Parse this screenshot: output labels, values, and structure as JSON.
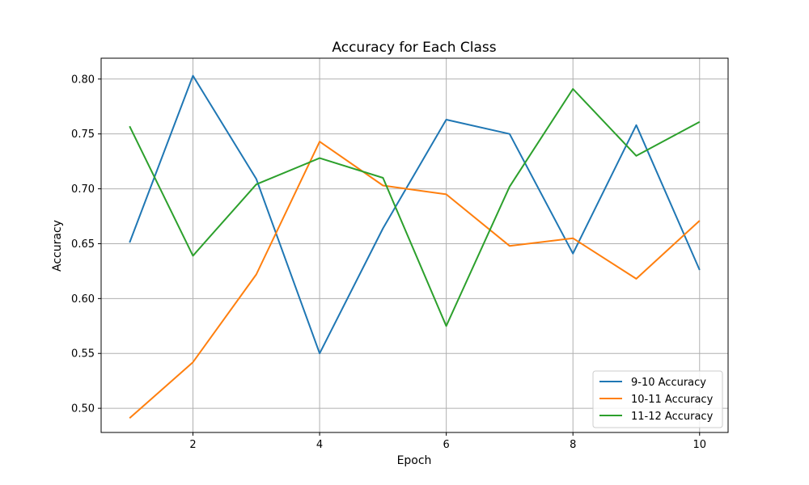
{
  "chart_data": {
    "type": "line",
    "title": "Accuracy for Each Class",
    "xlabel": "Epoch",
    "ylabel": "Accuracy",
    "x": [
      1,
      2,
      3,
      4,
      5,
      6,
      7,
      8,
      9,
      10
    ],
    "xlim": [
      0.55,
      10.45
    ],
    "ylim": [
      0.478,
      0.819
    ],
    "xticks": [
      2,
      4,
      6,
      8,
      10
    ],
    "yticks": [
      0.5,
      0.55,
      0.6,
      0.65,
      0.7,
      0.75,
      0.8
    ],
    "xtick_labels": [
      "2",
      "4",
      "6",
      "8",
      "10"
    ],
    "ytick_labels": [
      "0.50",
      "0.55",
      "0.60",
      "0.65",
      "0.70",
      "0.75",
      "0.80"
    ],
    "grid": true,
    "legend_position": "lower-right",
    "series": [
      {
        "name": "9-10 Accuracy",
        "color": "#1f77b4",
        "values": [
          0.651,
          0.803,
          0.709,
          0.55,
          0.664,
          0.763,
          0.75,
          0.641,
          0.758,
          0.626
        ]
      },
      {
        "name": "10-11 Accuracy",
        "color": "#ff7f0e",
        "values": [
          0.491,
          0.542,
          0.622,
          0.743,
          0.703,
          0.695,
          0.648,
          0.655,
          0.618,
          0.671
        ]
      },
      {
        "name": "11-12 Accuracy",
        "color": "#2ca02c",
        "values": [
          0.757,
          0.639,
          0.704,
          0.728,
          0.71,
          0.575,
          0.702,
          0.791,
          0.73,
          0.761
        ]
      }
    ]
  }
}
